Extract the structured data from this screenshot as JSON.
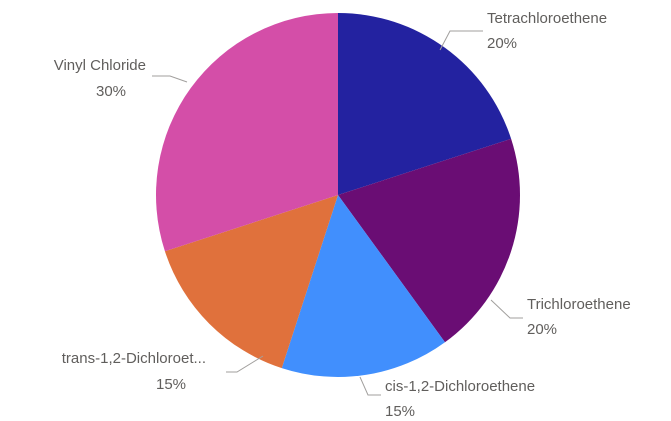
{
  "chart_data": {
    "type": "pie",
    "title": "",
    "legend": "none",
    "start_angle": "top",
    "direction": "clockwise",
    "slices": [
      {
        "name": "Tetrachloroethene",
        "label": "Tetrachloroethene",
        "value": 20,
        "percent_label": "20%",
        "color": "#2322a0"
      },
      {
        "name": "Trichloroethene",
        "label": "Trichloroethene",
        "value": 20,
        "percent_label": "20%",
        "color": "#6a0d74"
      },
      {
        "name": "cis-1,2-Dichloroethene",
        "label": "cis-1,2-Dichloroethene",
        "value": 15,
        "percent_label": "15%",
        "color": "#418ffd"
      },
      {
        "name": "trans-1,2-Dichloroethene",
        "label": "trans-1,2-Dichloroet...",
        "value": 15,
        "percent_label": "15%",
        "color": "#e0713c"
      },
      {
        "name": "Vinyl Chloride",
        "label": "Vinyl Chloride",
        "value": 30,
        "percent_label": "30%",
        "color": "#d44ea8"
      }
    ]
  }
}
